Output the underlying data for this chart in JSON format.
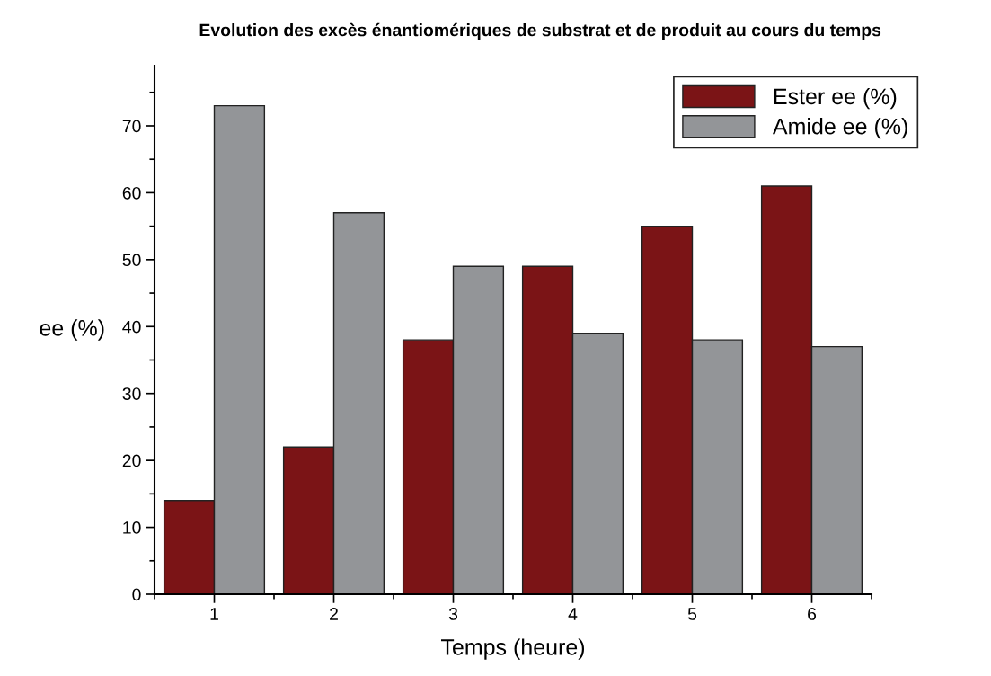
{
  "chart_data": {
    "type": "bar",
    "title": "Evolution des excès énantiomériques de substrat et de produit au cours du temps",
    "xlabel": "Temps (heure)",
    "ylabel": "ee (%)",
    "categories": [
      "1",
      "2",
      "3",
      "4",
      "5",
      "6"
    ],
    "series": [
      {
        "name": "Ester ee (%)",
        "color": "#7b1416",
        "values": [
          14,
          22,
          38,
          49,
          55,
          61
        ]
      },
      {
        "name": "Amide ee (%)",
        "color": "#939598",
        "values": [
          73,
          57,
          49,
          39,
          38,
          37
        ]
      }
    ],
    "ylim": [
      0,
      79
    ],
    "yticks": [
      0,
      10,
      20,
      30,
      40,
      50,
      60,
      70
    ],
    "grid": false,
    "legend": "top right"
  }
}
